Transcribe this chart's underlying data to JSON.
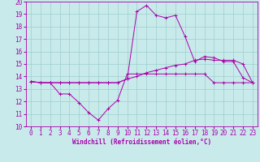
{
  "xlabel": "Windchill (Refroidissement éolien,°C)",
  "x_ticks": [
    0,
    1,
    2,
    3,
    4,
    5,
    6,
    7,
    8,
    9,
    10,
    11,
    12,
    13,
    14,
    15,
    16,
    17,
    18,
    19,
    20,
    21,
    22,
    23
  ],
  "ylim": [
    10,
    20
  ],
  "xlim": [
    -0.5,
    23.5
  ],
  "y_ticks": [
    10,
    11,
    12,
    13,
    14,
    15,
    16,
    17,
    18,
    19,
    20
  ],
  "bg_color": "#c8eaea",
  "line_color": "#aa00aa",
  "grid_color": "#9ecece",
  "line1_x": [
    0,
    1,
    2,
    3,
    4,
    5,
    6,
    7,
    8,
    9,
    10,
    11,
    12,
    13,
    14,
    15,
    16,
    17,
    18,
    19,
    20,
    21,
    22,
    23
  ],
  "line1_y": [
    13.6,
    13.5,
    13.5,
    12.6,
    12.6,
    11.9,
    11.1,
    10.5,
    11.4,
    12.1,
    14.2,
    14.2,
    14.2,
    14.2,
    14.2,
    14.2,
    14.2,
    14.2,
    14.2,
    13.5,
    13.5,
    13.5,
    13.5,
    13.5
  ],
  "line2_x": [
    0,
    1,
    2,
    3,
    4,
    5,
    6,
    7,
    8,
    9,
    10,
    11,
    12,
    13,
    14,
    15,
    16,
    17,
    18,
    19,
    20,
    21,
    22,
    23
  ],
  "line2_y": [
    13.6,
    13.5,
    13.5,
    13.5,
    13.5,
    13.5,
    13.5,
    13.5,
    13.5,
    13.5,
    13.8,
    14.0,
    14.3,
    14.5,
    14.7,
    14.9,
    15.0,
    15.3,
    15.4,
    15.3,
    15.3,
    15.3,
    15.0,
    13.5
  ],
  "line3_x": [
    0,
    1,
    2,
    3,
    4,
    5,
    6,
    7,
    8,
    9,
    10,
    11,
    12,
    13,
    14,
    15,
    16,
    17,
    18,
    19,
    20,
    21,
    22,
    23
  ],
  "line3_y": [
    13.6,
    13.5,
    13.5,
    13.5,
    13.5,
    13.5,
    13.5,
    13.5,
    13.5,
    13.5,
    13.8,
    19.2,
    19.7,
    18.9,
    18.7,
    18.9,
    17.2,
    15.2,
    15.6,
    15.5,
    15.2,
    15.2,
    13.9,
    13.5
  ],
  "tick_fontsize": 5.5,
  "xlabel_fontsize": 5.5,
  "linewidth": 0.7,
  "markersize": 2.5
}
